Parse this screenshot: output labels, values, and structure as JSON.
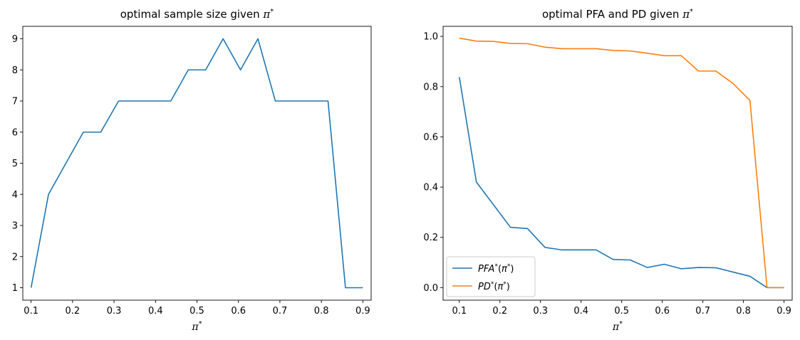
{
  "chart_data": [
    {
      "type": "line",
      "title": "optimal sample size given π*",
      "xlabel": "π*",
      "ylabel": "",
      "xlim": [
        0.08,
        0.92
      ],
      "ylim": [
        0.6,
        9.4
      ],
      "xticks": [
        "0.1",
        "0.2",
        "0.3",
        "0.4",
        "0.5",
        "0.6",
        "0.7",
        "0.8",
        "0.9"
      ],
      "yticks": [
        "1",
        "2",
        "3",
        "4",
        "5",
        "6",
        "7",
        "8",
        "9"
      ],
      "x": [
        0.1,
        0.142,
        0.184,
        0.226,
        0.268,
        0.311,
        0.353,
        0.395,
        0.437,
        0.479,
        0.521,
        0.563,
        0.605,
        0.647,
        0.689,
        0.732,
        0.774,
        0.816,
        0.858,
        0.9
      ],
      "series": [
        {
          "color": "#1f77b4",
          "values": [
            1,
            4,
            5,
            6,
            6,
            7,
            7,
            7,
            7,
            8,
            8,
            9,
            8,
            9,
            7,
            7,
            7,
            7,
            1,
            1
          ]
        }
      ],
      "grid": false,
      "legend": "none"
    },
    {
      "type": "line",
      "title": "optimal PFA and PD given π*",
      "xlabel": "π*",
      "ylabel": "",
      "xlim": [
        0.06,
        0.92
      ],
      "ylim": [
        -0.05,
        1.04
      ],
      "xticks": [
        "0.1",
        "0.2",
        "0.3",
        "0.4",
        "0.5",
        "0.6",
        "0.7",
        "0.8",
        "0.9"
      ],
      "yticks": [
        "0.0",
        "0.2",
        "0.4",
        "0.6",
        "0.8",
        "1.0"
      ],
      "x": [
        0.1,
        0.142,
        0.184,
        0.226,
        0.268,
        0.311,
        0.353,
        0.395,
        0.437,
        0.479,
        0.521,
        0.563,
        0.605,
        0.647,
        0.689,
        0.732,
        0.774,
        0.816,
        0.858,
        0.9
      ],
      "series": [
        {
          "name": "PFA*(π*)",
          "color": "#1f77b4",
          "values": [
            0.838,
            0.42,
            0.33,
            0.24,
            0.235,
            0.16,
            0.15,
            0.15,
            0.15,
            0.112,
            0.11,
            0.08,
            0.093,
            0.075,
            0.08,
            0.079,
            0.062,
            0.045,
            0.0,
            0.0
          ]
        },
        {
          "name": "PD*(π*)",
          "color": "#ff7f0e",
          "values": [
            0.993,
            0.981,
            0.98,
            0.972,
            0.971,
            0.957,
            0.951,
            0.951,
            0.951,
            0.944,
            0.942,
            0.933,
            0.923,
            0.923,
            0.862,
            0.862,
            0.813,
            0.745,
            0.0,
            0.0
          ]
        }
      ],
      "grid": false,
      "legend": "lower-left"
    }
  ]
}
